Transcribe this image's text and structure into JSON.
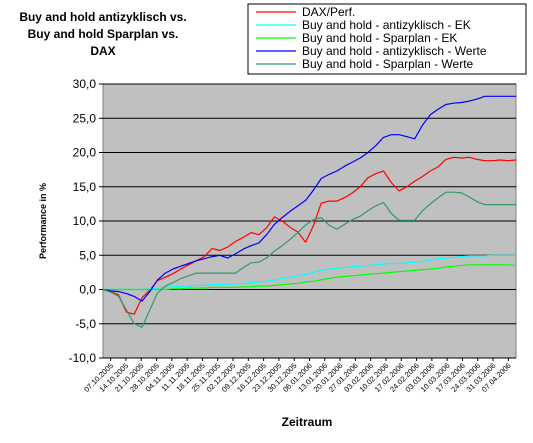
{
  "chart_data": {
    "type": "line",
    "title_lines": [
      "Buy and hold antizyklisch vs.",
      "Buy and hold Sparplan vs.",
      "DAX"
    ],
    "xlabel": "Zeitraum",
    "ylabel": "Performance in %",
    "ylim": [
      -10,
      30
    ],
    "yticks": [
      "-10,0",
      "-5,0",
      "0,0",
      "5,0",
      "10,0",
      "15,0",
      "20,0",
      "25,0",
      "30,0"
    ],
    "grid": true,
    "legend_position": "top-right",
    "categories": [
      "07.10.2005",
      "14.10.2005",
      "21.10.2005",
      "28.10.2005",
      "04.11.2005",
      "11.11.2005",
      "18.11.2005",
      "25.11.2005",
      "02.12.2005",
      "09.12.2005",
      "16.12.2005",
      "23.12.2005",
      "30.12.2005",
      "06.01.2006",
      "13.01.2006",
      "20.01.2006",
      "27.01.2006",
      "03.02.2006",
      "10.02.2006",
      "17.02.2006",
      "24.02.2006",
      "03.03.2006",
      "10.03.2006",
      "17.03.2006",
      "24.03.2006",
      "31.03.2006",
      "07.04.2006"
    ],
    "x": [
      0,
      1,
      2,
      3,
      4,
      5,
      6,
      7,
      8,
      9,
      10,
      11,
      12,
      13,
      14,
      15,
      16,
      17,
      18,
      19,
      20,
      21,
      22,
      23,
      24,
      25,
      26,
      27,
      28,
      29,
      30,
      31,
      32,
      33,
      34,
      35,
      36,
      37,
      38,
      39,
      40,
      41,
      42,
      43,
      44,
      45,
      46,
      47,
      48,
      49,
      50,
      51,
      52,
      53
    ],
    "series": [
      {
        "name": "DAX/Perf.",
        "color": "#ff0000",
        "values": [
          0,
          -0.3,
          -0.8,
          -3.3,
          -3.6,
          -1.2,
          -0.1,
          1.3,
          1.8,
          2.3,
          3.0,
          3.6,
          4.2,
          4.8,
          6.0,
          5.7,
          6.2,
          7.0,
          7.6,
          8.3,
          8.0,
          9.0,
          10.6,
          10.0,
          9.1,
          8.4,
          6.9,
          9.3,
          12.6,
          12.9,
          12.9,
          13.4,
          14.1,
          15.0,
          16.3,
          16.9,
          17.3,
          15.6,
          14.4,
          15.0,
          15.8,
          16.5,
          17.3,
          17.9,
          19.0,
          19.3,
          19.2,
          19.3,
          19.0,
          18.8,
          18.8,
          18.9,
          18.8,
          18.9
        ]
      },
      {
        "name": "Buy and hold - antizyklisch - EK",
        "color": "#00ffff",
        "values": [
          0,
          0,
          0,
          0,
          0,
          0,
          0.1,
          0.2,
          0.3,
          0.4,
          0.5,
          0.5,
          0.6,
          0.6,
          0.7,
          0.7,
          0.8,
          0.8,
          0.9,
          1.0,
          1.1,
          1.2,
          1.4,
          1.6,
          1.8,
          2.0,
          2.2,
          2.5,
          2.8,
          3.0,
          3.1,
          3.2,
          3.3,
          3.4,
          3.5,
          3.6,
          3.7,
          3.8,
          3.8,
          3.9,
          4.0,
          4.1,
          4.3,
          4.5,
          4.6,
          4.7,
          4.8,
          4.9,
          4.9,
          4.9,
          5.0,
          5.0,
          5.0,
          5.0
        ]
      },
      {
        "name": "Buy and hold - Sparplan - EK",
        "color": "#00ff00",
        "values": [
          0,
          0,
          0,
          0,
          0,
          0,
          0,
          0,
          0,
          0.1,
          0.1,
          0.2,
          0.2,
          0.2,
          0.3,
          0.3,
          0.3,
          0.3,
          0.4,
          0.4,
          0.5,
          0.5,
          0.6,
          0.7,
          0.8,
          0.9,
          1.1,
          1.2,
          1.4,
          1.6,
          1.8,
          1.9,
          2.0,
          2.1,
          2.2,
          2.3,
          2.4,
          2.5,
          2.6,
          2.7,
          2.8,
          2.9,
          3.0,
          3.1,
          3.3,
          3.4,
          3.5,
          3.6,
          3.6,
          3.6,
          3.6,
          3.6,
          3.6,
          3.5
        ]
      },
      {
        "name": "Buy and hold - antizyklisch - Werte",
        "color": "#0000ff",
        "values": [
          0,
          -0.2,
          -0.3,
          -0.6,
          -1.0,
          -1.7,
          -0.3,
          1.4,
          2.4,
          3.0,
          3.4,
          3.8,
          4.2,
          4.5,
          4.8,
          5.0,
          4.6,
          5.2,
          5.9,
          6.4,
          6.8,
          8.0,
          9.5,
          10.5,
          11.4,
          12.2,
          13.0,
          14.5,
          16.2,
          16.8,
          17.3,
          18.0,
          18.6,
          19.2,
          20.0,
          21.0,
          22.2,
          22.6,
          22.6,
          22.3,
          22.0,
          24.0,
          25.5,
          26.3,
          27.0,
          27.2,
          27.3,
          27.5,
          27.8,
          28.2,
          28.2,
          28.2,
          28.2,
          28.2
        ]
      },
      {
        "name": "Buy and hold - Sparplan - Werte",
        "color": "#339966",
        "values": [
          0,
          -0.4,
          -1.0,
          -3.0,
          -5.0,
          -5.5,
          -3.0,
          -0.5,
          0.5,
          1.0,
          1.6,
          2.0,
          2.4,
          2.4,
          2.4,
          2.4,
          2.4,
          2.4,
          3.2,
          3.9,
          4.0,
          4.6,
          5.6,
          6.4,
          7.3,
          8.3,
          9.4,
          10.2,
          10.5,
          9.4,
          8.8,
          9.5,
          10.2,
          10.7,
          11.5,
          12.2,
          12.7,
          11.1,
          10.1,
          10.1,
          10.1,
          11.5,
          12.5,
          13.4,
          14.2,
          14.2,
          14.1,
          13.5,
          12.8,
          12.4,
          12.4,
          12.4,
          12.4,
          12.4
        ]
      }
    ]
  }
}
